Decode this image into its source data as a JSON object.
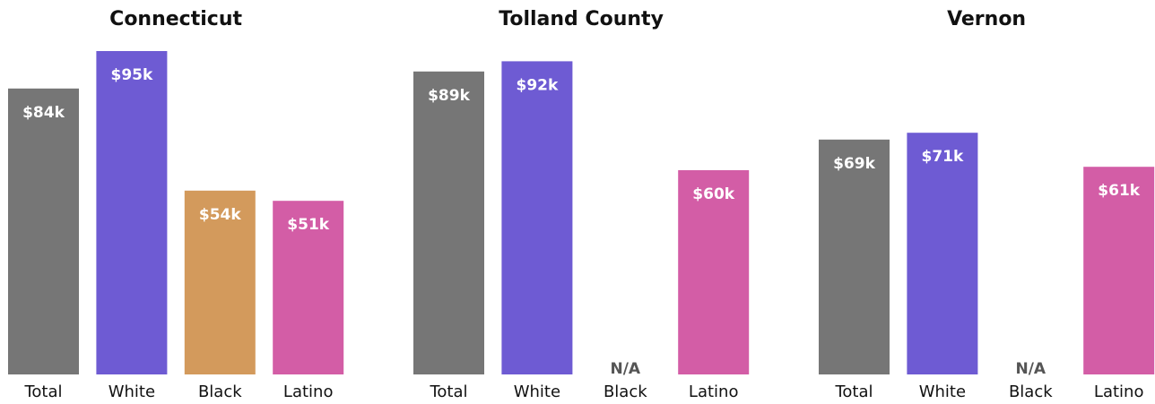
{
  "chart_data": [
    {
      "type": "bar",
      "title": "Connecticut",
      "categories": [
        "Total",
        "White",
        "Black",
        "Latino"
      ],
      "values": [
        84,
        95,
        54,
        51
      ],
      "value_labels": [
        "$84k",
        "$95k",
        "$54k",
        "$51k"
      ],
      "ylabel": "",
      "xlabel": "",
      "ylim": [
        0,
        95
      ]
    },
    {
      "type": "bar",
      "title": "Tolland County",
      "categories": [
        "Total",
        "White",
        "Black",
        "Latino"
      ],
      "values": [
        89,
        92,
        null,
        60
      ],
      "value_labels": [
        "$89k",
        "$92k",
        "N/A",
        "$60k"
      ],
      "ylabel": "",
      "xlabel": "",
      "ylim": [
        0,
        95
      ]
    },
    {
      "type": "bar",
      "title": "Vernon",
      "categories": [
        "Total",
        "White",
        "Black",
        "Latino"
      ],
      "values": [
        69,
        71,
        null,
        61
      ],
      "value_labels": [
        "$69k",
        "$71k",
        "N/A",
        "$61k"
      ],
      "ylabel": "",
      "xlabel": "",
      "ylim": [
        0,
        95
      ]
    }
  ],
  "colors": {
    "Total": "#767676",
    "White": "#6e5bd3",
    "Black": "#d39a5c",
    "Latino": "#d35da6",
    "na_text": "#555555"
  },
  "grid": false,
  "legend": "none"
}
